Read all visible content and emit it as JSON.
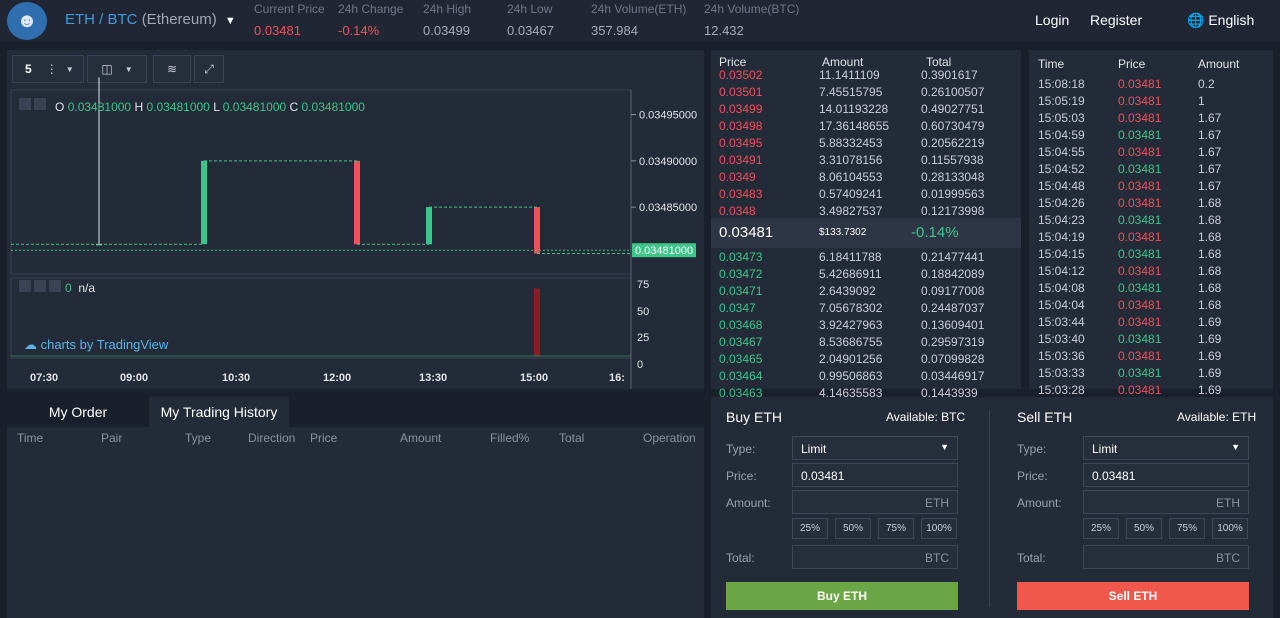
{
  "header": {
    "pair_main": "ETH / BTC",
    "pair_sub": "(Ethereum)",
    "stats": [
      {
        "label": "Current Price",
        "value": "0.03481",
        "color": "red"
      },
      {
        "label": "24h Change",
        "value": "-0.14%",
        "color": "red"
      },
      {
        "label": "24h High",
        "value": "0.03499",
        "color": "grey"
      },
      {
        "label": "24h Low",
        "value": "0.03467",
        "color": "grey"
      },
      {
        "label": "24h Volume(ETH)",
        "value": "357.984",
        "color": "grey"
      },
      {
        "label": "24h Volume(BTC)",
        "value": "12.432",
        "color": "grey"
      }
    ],
    "login": "Login",
    "register": "Register",
    "language": "English"
  },
  "chart": {
    "interval": "5",
    "ohlc": {
      "o_label": "O",
      "o": "0.03481000",
      "h_label": "H",
      "h": "0.03481000",
      "l_label": "L",
      "l": "0.03481000",
      "c_label": "C",
      "c": "0.03481000"
    },
    "price_axis": [
      "0.03495000",
      "0.03490000",
      "0.03485000",
      "0.03481000"
    ],
    "volume_axis": [
      "75",
      "50",
      "25",
      "0"
    ],
    "time_axis": [
      "07:30",
      "09:00",
      "10:30",
      "12:00",
      "13:30",
      "15:00",
      "16:"
    ],
    "volume_value": "0",
    "volume_na": "n/a",
    "watermark": "charts by TradingView"
  },
  "chart_data": {
    "type": "candlestick",
    "ylim": [
      0.03478,
      0.03497
    ],
    "candles": [
      {
        "o": 0.03481,
        "c": 0.03481,
        "h": 0.03499,
        "l": 0.03481,
        "dir": "flat"
      },
      {
        "o": 0.03481,
        "c": 0.0349,
        "h": 0.0349,
        "l": 0.03481,
        "dir": "up"
      },
      {
        "o": 0.0349,
        "c": 0.03481,
        "h": 0.0349,
        "l": 0.03481,
        "dir": "down"
      },
      {
        "o": 0.03481,
        "c": 0.03485,
        "h": 0.03485,
        "l": 0.03481,
        "dir": "up"
      },
      {
        "o": 0.03485,
        "c": 0.0348,
        "h": 0.03485,
        "l": 0.0348,
        "dir": "down"
      }
    ],
    "last_price": 0.03481,
    "volume_ylim": [
      0,
      80
    ],
    "volume_spike": 75
  },
  "orderbook": {
    "headers": {
      "price": "Price",
      "amount": "Amount",
      "total": "Total"
    },
    "asks": [
      {
        "price": "0.03502",
        "amount": "11.1411109",
        "total": "0.3901617"
      },
      {
        "price": "0.03501",
        "amount": "7.45515795",
        "total": "0.26100507"
      },
      {
        "price": "0.03499",
        "amount": "14.01193228",
        "total": "0.49027751"
      },
      {
        "price": "0.03498",
        "amount": "17.36148655",
        "total": "0.60730479"
      },
      {
        "price": "0.03495",
        "amount": "5.88332453",
        "total": "0.20562219"
      },
      {
        "price": "0.03491",
        "amount": "3.31078156",
        "total": "0.11557938"
      },
      {
        "price": "0.0349",
        "amount": "8.06104553",
        "total": "0.28133048"
      },
      {
        "price": "0.03483",
        "amount": "0.57409241",
        "total": "0.01999563"
      },
      {
        "price": "0.0348",
        "amount": "3.49827537",
        "total": "0.12173998"
      }
    ],
    "mid": {
      "price": "0.03481",
      "value": "$133.7302",
      "change": "-0.14%"
    },
    "bids": [
      {
        "price": "0.03473",
        "amount": "6.18411788",
        "total": "0.21477441"
      },
      {
        "price": "0.03472",
        "amount": "5.42686911",
        "total": "0.18842089"
      },
      {
        "price": "0.03471",
        "amount": "2.6439092",
        "total": "0.09177008"
      },
      {
        "price": "0.0347",
        "amount": "7.05678302",
        "total": "0.24487037"
      },
      {
        "price": "0.03468",
        "amount": "3.92427963",
        "total": "0.13609401"
      },
      {
        "price": "0.03467",
        "amount": "8.53686755",
        "total": "0.29597319"
      },
      {
        "price": "0.03465",
        "amount": "2.04901256",
        "total": "0.07099828"
      },
      {
        "price": "0.03464",
        "amount": "0.99506863",
        "total": "0.03446917"
      },
      {
        "price": "0.03463",
        "amount": "4.14635583",
        "total": "0.1443939"
      }
    ]
  },
  "trades": {
    "headers": {
      "time": "Time",
      "price": "Price",
      "amount": "Amount"
    },
    "rows": [
      {
        "time": "15:08:18",
        "price": "0.03481",
        "amount": "0.2",
        "side": "sell"
      },
      {
        "time": "15:05:19",
        "price": "0.03481",
        "amount": "1",
        "side": "sell"
      },
      {
        "time": "15:05:03",
        "price": "0.03481",
        "amount": "1.67",
        "side": "sell"
      },
      {
        "time": "15:04:59",
        "price": "0.03481",
        "amount": "1.67",
        "side": "buy"
      },
      {
        "time": "15:04:55",
        "price": "0.03481",
        "amount": "1.67",
        "side": "sell"
      },
      {
        "time": "15:04:52",
        "price": "0.03481",
        "amount": "1.67",
        "side": "buy"
      },
      {
        "time": "15:04:48",
        "price": "0.03481",
        "amount": "1.67",
        "side": "sell"
      },
      {
        "time": "15:04:26",
        "price": "0.03481",
        "amount": "1.68",
        "side": "sell"
      },
      {
        "time": "15:04:23",
        "price": "0.03481",
        "amount": "1.68",
        "side": "buy"
      },
      {
        "time": "15:04:19",
        "price": "0.03481",
        "amount": "1.68",
        "side": "sell"
      },
      {
        "time": "15:04:15",
        "price": "0.03481",
        "amount": "1.68",
        "side": "buy"
      },
      {
        "time": "15:04:12",
        "price": "0.03481",
        "amount": "1.68",
        "side": "sell"
      },
      {
        "time": "15:04:08",
        "price": "0.03481",
        "amount": "1.68",
        "side": "buy"
      },
      {
        "time": "15:04:04",
        "price": "0.03481",
        "amount": "1.68",
        "side": "sell"
      },
      {
        "time": "15:03:44",
        "price": "0.03481",
        "amount": "1.69",
        "side": "sell"
      },
      {
        "time": "15:03:40",
        "price": "0.03481",
        "amount": "1.69",
        "side": "buy"
      },
      {
        "time": "15:03:36",
        "price": "0.03481",
        "amount": "1.69",
        "side": "sell"
      },
      {
        "time": "15:03:33",
        "price": "0.03481",
        "amount": "1.69",
        "side": "buy"
      },
      {
        "time": "15:03:28",
        "price": "0.03481",
        "amount": "1.69",
        "side": "sell"
      }
    ]
  },
  "orders": {
    "tab_orders": "My Order",
    "tab_history": "My Trading History",
    "columns": [
      "Time",
      "Pair",
      "Type",
      "Direction",
      "Price",
      "Amount",
      "Filled%",
      "Total",
      "Operation"
    ]
  },
  "buy": {
    "title": "Buy ETH",
    "available": "Available: BTC",
    "type_label": "Type:",
    "type_value": "Limit",
    "price_label": "Price:",
    "price_value": "0.03481",
    "amount_label": "Amount:",
    "amount_unit": "ETH",
    "percents": [
      "25%",
      "50%",
      "75%",
      "100%"
    ],
    "total_label": "Total:",
    "total_unit": "BTC",
    "button": "Buy ETH"
  },
  "sell": {
    "title": "Sell ETH",
    "available": "Available: ETH",
    "type_label": "Type:",
    "type_value": "Limit",
    "price_label": "Price:",
    "price_value": "0.03481",
    "amount_label": "Amount:",
    "amount_unit": "ETH",
    "percents": [
      "25%",
      "50%",
      "75%",
      "100%"
    ],
    "total_label": "Total:",
    "total_unit": "BTC",
    "button": "Sell ETH"
  },
  "colors": {
    "up": "#3cc68a",
    "down": "#f0505a",
    "buy_button": "#6aa646",
    "sell_button": "#f0584c",
    "accent": "#3d9be0"
  }
}
